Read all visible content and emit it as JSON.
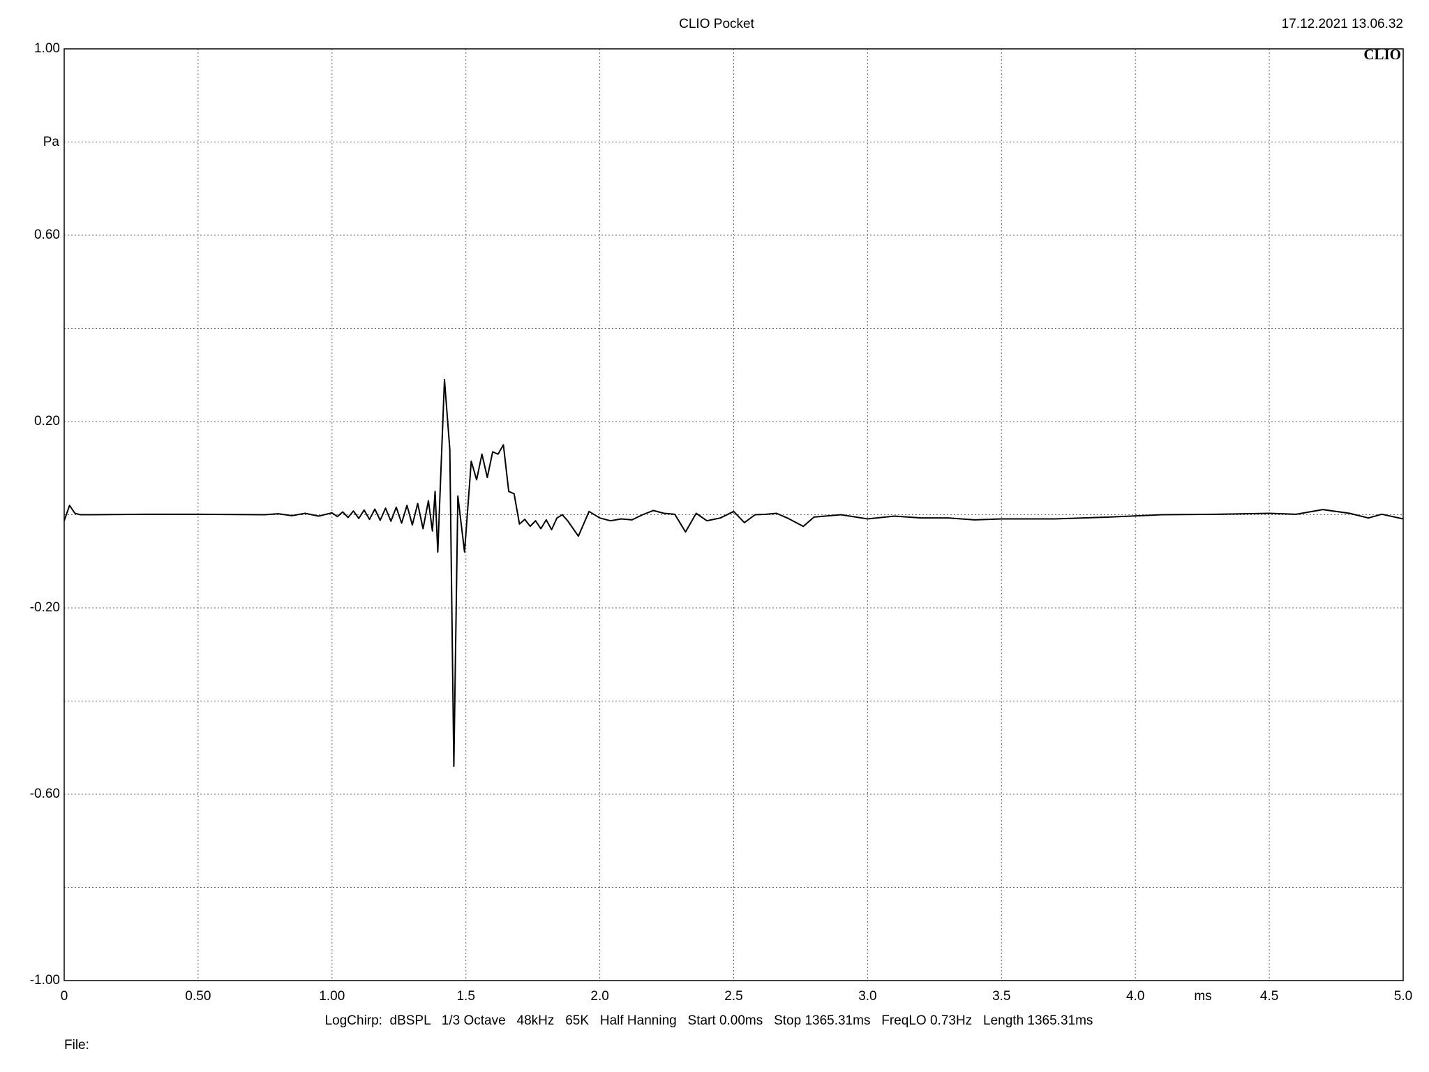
{
  "chart_data": {
    "type": "line",
    "title": "CLIO Pocket",
    "timestamp": "17.12.2021 13.06.32",
    "logo": "CLIO",
    "ylabel": "Pa",
    "xlabel": "ms",
    "footer": "LogChirp:  dBSPL   1/3 Octave   48kHz   65K   Half Hanning   Start 0.00ms   Stop 1365.31ms   FreqLO 0.73Hz   Length 1365.31ms",
    "file_label": "File:",
    "color": "#000000",
    "grid": true,
    "xlim": [
      0,
      5
    ],
    "ylim": [
      -1,
      1
    ],
    "xticks": [
      0,
      {
        "value": 0.5,
        "label": "0.50"
      },
      {
        "value": 1,
        "label": "1.00"
      },
      1.5,
      {
        "value": 2,
        "label": "2.0"
      },
      2.5,
      {
        "value": 3,
        "label": "3.0"
      },
      3.5,
      {
        "value": 4,
        "label": "4.0"
      },
      4.5,
      {
        "value": 5,
        "label": "5.0"
      }
    ],
    "yticks": [
      {
        "value": -1,
        "label": "-1.00"
      },
      {
        "value": -0.8,
        "label": null
      },
      {
        "value": -0.6,
        "label": "-0.60"
      },
      {
        "value": -0.4,
        "label": null
      },
      {
        "value": -0.2,
        "label": "-0.20"
      },
      {
        "value": 0,
        "label": null
      },
      {
        "value": 0.2,
        "label": "0.20"
      },
      {
        "value": 0.4,
        "label": null
      },
      {
        "value": 0.6,
        "label": "0.60"
      },
      {
        "value": 0.8,
        "label": null
      },
      {
        "value": 1,
        "label": "1.00"
      }
    ],
    "x": [
      0,
      0.02,
      0.04,
      0.06,
      0.1,
      0.3,
      0.5,
      0.75,
      0.8,
      0.85,
      0.9,
      0.95,
      1.0,
      1.02,
      1.04,
      1.06,
      1.08,
      1.1,
      1.12,
      1.14,
      1.16,
      1.18,
      1.2,
      1.22,
      1.24,
      1.26,
      1.28,
      1.3,
      1.32,
      1.34,
      1.36,
      1.375,
      1.385,
      1.395,
      1.42,
      1.44,
      1.455,
      1.47,
      1.495,
      1.52,
      1.54,
      1.56,
      1.58,
      1.6,
      1.62,
      1.64,
      1.66,
      1.68,
      1.7,
      1.72,
      1.74,
      1.76,
      1.78,
      1.8,
      1.82,
      1.84,
      1.86,
      1.88,
      1.92,
      1.96,
      2.0,
      2.04,
      2.08,
      2.12,
      2.16,
      2.2,
      2.24,
      2.28,
      2.32,
      2.36,
      2.4,
      2.45,
      2.5,
      2.54,
      2.58,
      2.62,
      2.66,
      2.7,
      2.76,
      2.8,
      2.9,
      3.0,
      3.1,
      3.2,
      3.3,
      3.4,
      3.5,
      3.7,
      3.9,
      4.1,
      4.3,
      4.5,
      4.6,
      4.7,
      4.8,
      4.87,
      4.92,
      5.0
    ],
    "values": [
      -0.013,
      0.02,
      0.003,
      0.0,
      0.0,
      0.001,
      0.001,
      0.0,
      0.002,
      -0.002,
      0.003,
      -0.003,
      0.004,
      -0.004,
      0.006,
      -0.006,
      0.008,
      -0.008,
      0.01,
      -0.01,
      0.012,
      -0.012,
      0.014,
      -0.014,
      0.016,
      -0.018,
      0.02,
      -0.022,
      0.024,
      -0.03,
      0.03,
      -0.035,
      0.05,
      -0.08,
      0.29,
      0.14,
      -0.54,
      0.04,
      -0.08,
      0.115,
      0.075,
      0.13,
      0.08,
      0.135,
      0.13,
      0.15,
      0.05,
      0.045,
      -0.02,
      -0.01,
      -0.025,
      -0.013,
      -0.03,
      -0.011,
      -0.032,
      -0.007,
      0.0,
      -0.013,
      -0.046,
      0.007,
      -0.007,
      -0.013,
      -0.009,
      -0.011,
      0.0,
      0.009,
      0.003,
      0.001,
      -0.037,
      0.003,
      -0.013,
      -0.007,
      0.007,
      -0.017,
      0.0,
      0.001,
      0.003,
      -0.007,
      -0.025,
      -0.005,
      0.0,
      -0.009,
      -0.003,
      -0.007,
      -0.007,
      -0.011,
      -0.009,
      -0.009,
      -0.005,
      0.0,
      0.001,
      0.003,
      0.001,
      0.011,
      0.003,
      -0.007,
      0.001,
      -0.009
    ]
  }
}
